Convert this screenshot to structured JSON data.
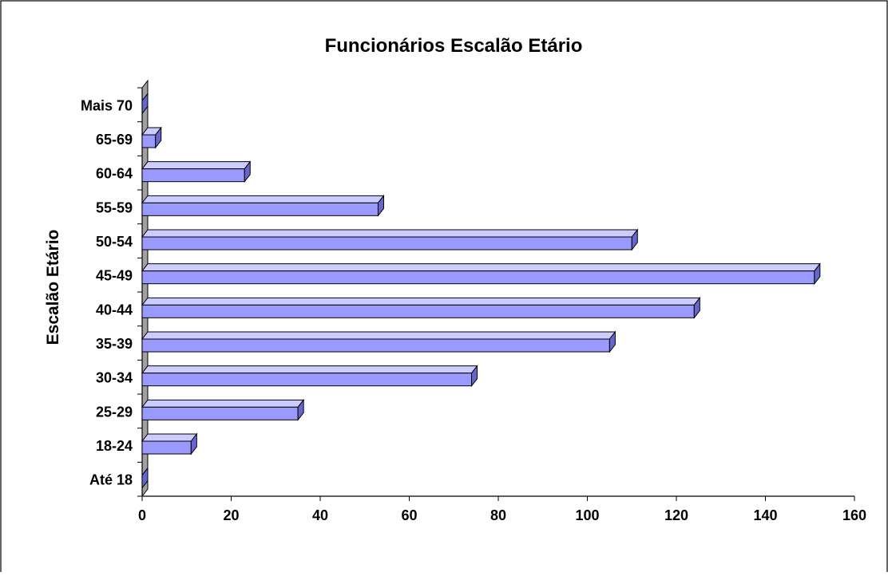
{
  "chart_data": {
    "type": "bar",
    "orientation": "horizontal",
    "title": "Funcionários Escalão Etário",
    "xlabel": "",
    "ylabel": "Escalão Etário",
    "categories": [
      "Até 18",
      "18-24",
      "25-29",
      "30-34",
      "35-39",
      "40-44",
      "45-49",
      "50-54",
      "55-59",
      "60-64",
      "65-69",
      "Mais 70"
    ],
    "values": [
      0,
      11,
      35,
      74,
      105,
      124,
      151,
      110,
      53,
      23,
      3,
      0
    ],
    "xlim": [
      0,
      160
    ],
    "xticks": [
      0,
      20,
      40,
      60,
      80,
      100,
      120,
      140,
      160
    ],
    "grid": false,
    "legend": "none",
    "style": "3d-bar",
    "colors": {
      "bar_front": "#9999ff",
      "bar_top": "#ccccff",
      "bar_side": "#6666cc",
      "bar_edge": "#000000",
      "wall": "#a0a0a0"
    }
  }
}
